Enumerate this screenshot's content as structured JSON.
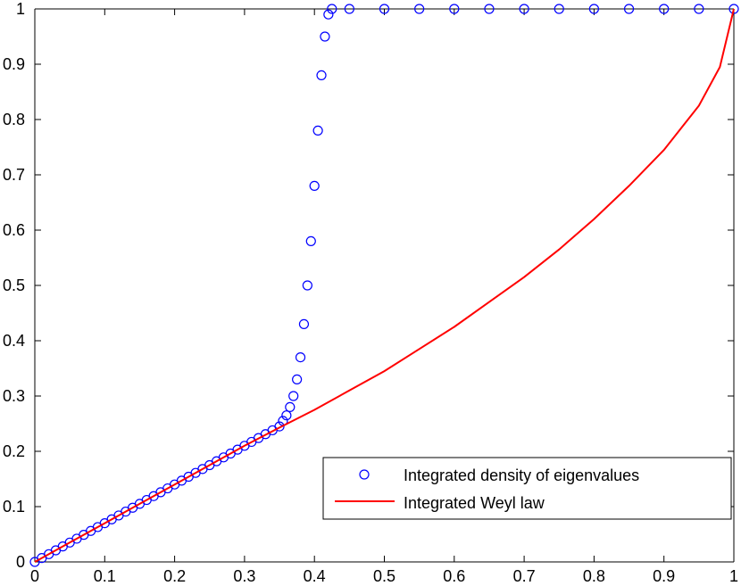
{
  "chart_data": {
    "type": "scatter",
    "xlim": [
      0,
      1
    ],
    "ylim": [
      0,
      1
    ],
    "grid": false,
    "legend_placement": "bottom-right",
    "x_ticks": [
      "0",
      "0.1",
      "0.2",
      "0.3",
      "0.4",
      "0.5",
      "0.6",
      "0.7",
      "0.8",
      "0.9",
      "1"
    ],
    "y_ticks": [
      "0",
      "0.1",
      "0.2",
      "0.3",
      "0.4",
      "0.5",
      "0.6",
      "0.7",
      "0.8",
      "0.9",
      "1"
    ],
    "series": [
      {
        "name": "Integrated density of eigenvalues",
        "kind": "scatter",
        "marker": "circle-open",
        "color": "#0000ff",
        "points": [
          [
            0.0,
            0.0
          ],
          [
            0.01,
            0.007
          ],
          [
            0.02,
            0.014
          ],
          [
            0.03,
            0.021
          ],
          [
            0.04,
            0.028
          ],
          [
            0.05,
            0.035
          ],
          [
            0.06,
            0.042
          ],
          [
            0.07,
            0.049
          ],
          [
            0.08,
            0.056
          ],
          [
            0.09,
            0.063
          ],
          [
            0.1,
            0.07
          ],
          [
            0.11,
            0.077
          ],
          [
            0.12,
            0.084
          ],
          [
            0.13,
            0.091
          ],
          [
            0.14,
            0.098
          ],
          [
            0.15,
            0.105
          ],
          [
            0.16,
            0.112
          ],
          [
            0.17,
            0.119
          ],
          [
            0.18,
            0.126
          ],
          [
            0.19,
            0.133
          ],
          [
            0.2,
            0.14
          ],
          [
            0.21,
            0.147
          ],
          [
            0.22,
            0.154
          ],
          [
            0.23,
            0.161
          ],
          [
            0.24,
            0.168
          ],
          [
            0.25,
            0.175
          ],
          [
            0.26,
            0.182
          ],
          [
            0.27,
            0.189
          ],
          [
            0.28,
            0.196
          ],
          [
            0.29,
            0.203
          ],
          [
            0.3,
            0.21
          ],
          [
            0.31,
            0.217
          ],
          [
            0.32,
            0.224
          ],
          [
            0.33,
            0.231
          ],
          [
            0.34,
            0.238
          ],
          [
            0.35,
            0.245
          ],
          [
            0.355,
            0.255
          ],
          [
            0.36,
            0.265
          ],
          [
            0.365,
            0.28
          ],
          [
            0.37,
            0.3
          ],
          [
            0.375,
            0.33
          ],
          [
            0.38,
            0.37
          ],
          [
            0.385,
            0.43
          ],
          [
            0.39,
            0.5
          ],
          [
            0.395,
            0.58
          ],
          [
            0.4,
            0.68
          ],
          [
            0.405,
            0.78
          ],
          [
            0.41,
            0.88
          ],
          [
            0.415,
            0.95
          ],
          [
            0.42,
            0.99
          ],
          [
            0.425,
            1.0
          ],
          [
            0.45,
            1.0
          ],
          [
            0.5,
            1.0
          ],
          [
            0.55,
            1.0
          ],
          [
            0.6,
            1.0
          ],
          [
            0.65,
            1.0
          ],
          [
            0.7,
            1.0
          ],
          [
            0.75,
            1.0
          ],
          [
            0.8,
            1.0
          ],
          [
            0.85,
            1.0
          ],
          [
            0.9,
            1.0
          ],
          [
            0.95,
            1.0
          ],
          [
            1.0,
            1.0
          ]
        ]
      },
      {
        "name": "Integrated Weyl law",
        "kind": "line",
        "color": "#ff0000",
        "points": [
          [
            0.0,
            0.0
          ],
          [
            0.05,
            0.035
          ],
          [
            0.1,
            0.07
          ],
          [
            0.15,
            0.105
          ],
          [
            0.2,
            0.14
          ],
          [
            0.25,
            0.175
          ],
          [
            0.3,
            0.21
          ],
          [
            0.35,
            0.243
          ],
          [
            0.4,
            0.275
          ],
          [
            0.45,
            0.31
          ],
          [
            0.5,
            0.345
          ],
          [
            0.55,
            0.385
          ],
          [
            0.6,
            0.425
          ],
          [
            0.65,
            0.47
          ],
          [
            0.7,
            0.515
          ],
          [
            0.75,
            0.565
          ],
          [
            0.8,
            0.62
          ],
          [
            0.85,
            0.68
          ],
          [
            0.9,
            0.745
          ],
          [
            0.95,
            0.825
          ],
          [
            0.98,
            0.895
          ],
          [
            1.0,
            1.0
          ]
        ]
      }
    ]
  }
}
